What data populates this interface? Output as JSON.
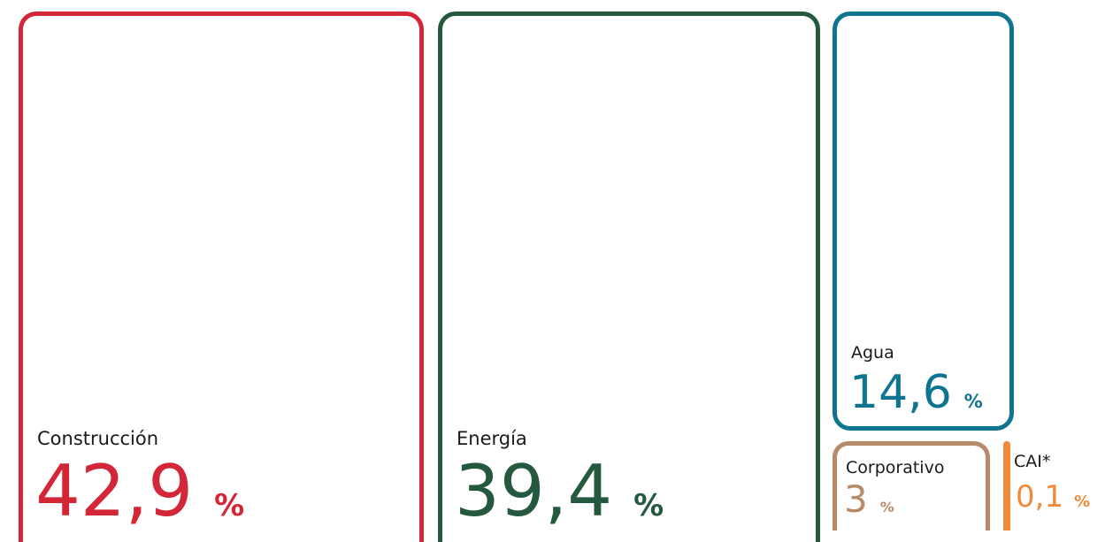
{
  "chart_data": {
    "type": "treemap",
    "unit": "%",
    "categories": [
      "Construcción",
      "Energía",
      "Agua",
      "Corporativo",
      "CAI*"
    ],
    "values": [
      42.9,
      39.4,
      14.6,
      3,
      0.1
    ],
    "display_values": [
      "42,9",
      "39,4",
      "14,6",
      "3",
      "0,1"
    ],
    "colors": [
      "#d32637",
      "#24593f",
      "#0f7490",
      "#b78a6a",
      "#f08a3b"
    ]
  },
  "tiles": [
    {
      "label": "Construcción",
      "value": "42,9",
      "unit": "%"
    },
    {
      "label": "Energía",
      "value": "39,4",
      "unit": "%"
    },
    {
      "label": "Agua",
      "value": "14,6",
      "unit": "%"
    },
    {
      "label": "Corporativo",
      "value": "3",
      "unit": "%"
    },
    {
      "label": "CAI*",
      "value": "0,1",
      "unit": "%"
    }
  ]
}
